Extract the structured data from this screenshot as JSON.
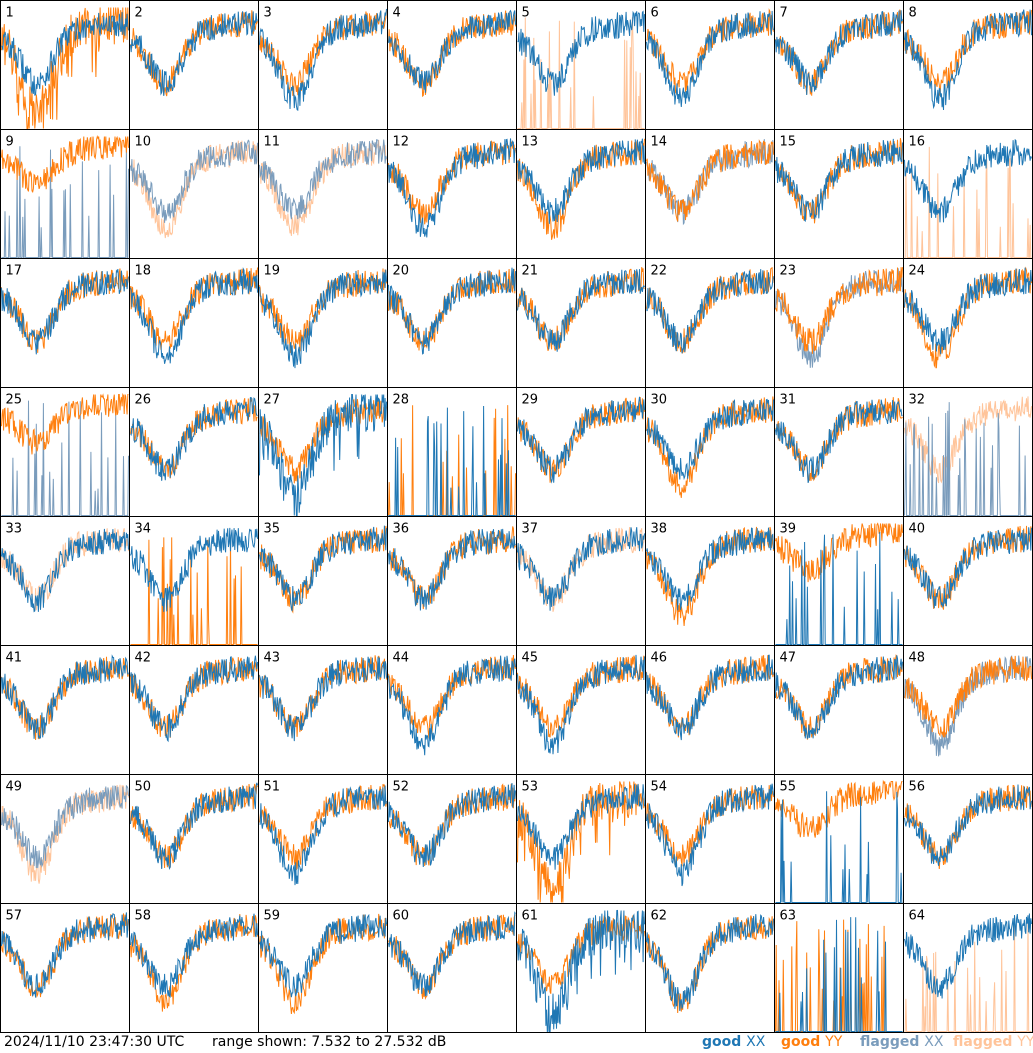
{
  "footer": {
    "timestamp": "2024/11/10 23:47:30 UTC",
    "range_text": "range shown: 7.532 to 27.532 dB"
  },
  "legend": [
    {
      "key": "good_xx",
      "prefix": "good ",
      "suffix": "XX",
      "color": "#1f77b4"
    },
    {
      "key": "good_yy",
      "prefix": "good ",
      "suffix": "YY",
      "color": "#ff7f0e"
    },
    {
      "key": "flagged_xx",
      "prefix": "flagged ",
      "suffix": "XX",
      "color": "#7a9cbc"
    },
    {
      "key": "flagged_yy",
      "prefix": "flagged ",
      "suffix": "YY",
      "color": "#ffc49a"
    }
  ],
  "chart_data": {
    "type": "line",
    "layout": "8x8 grid of small multiples, one panel per antenna",
    "ylim": [
      7.532,
      27.532
    ],
    "yunit": "dB",
    "series_keys": [
      "XX",
      "YY"
    ],
    "panels": [
      {
        "label": "1",
        "xx": "good",
        "yy": "good",
        "xx_shape": "dip",
        "yy_shape": "lowdip"
      },
      {
        "label": "2",
        "xx": "good",
        "yy": "good",
        "xx_shape": "dip",
        "yy_shape": "dip"
      },
      {
        "label": "3",
        "xx": "good",
        "yy": "good",
        "xx_shape": "deepdip",
        "yy_shape": "dip"
      },
      {
        "label": "4",
        "xx": "good",
        "yy": "good",
        "xx_shape": "dip",
        "yy_shape": "dip"
      },
      {
        "label": "5",
        "xx": "good",
        "yy": "flagged",
        "xx_shape": "dip",
        "yy_shape": "spikes"
      },
      {
        "label": "6",
        "xx": "good",
        "yy": "good",
        "xx_shape": "deepdip",
        "yy_shape": "dip"
      },
      {
        "label": "7",
        "xx": "good",
        "yy": "good",
        "xx_shape": "dip",
        "yy_shape": "dip"
      },
      {
        "label": "8",
        "xx": "good",
        "yy": "good",
        "xx_shape": "deepdip",
        "yy_shape": "dip"
      },
      {
        "label": "9",
        "xx": "flagged",
        "yy": "good",
        "xx_shape": "spikes",
        "yy_shape": "high"
      },
      {
        "label": "10",
        "xx": "flagged",
        "yy": "flagged",
        "xx_shape": "dip",
        "yy_shape": "deepdip"
      },
      {
        "label": "11",
        "xx": "flagged",
        "yy": "flagged",
        "xx_shape": "dip",
        "yy_shape": "deepdip"
      },
      {
        "label": "12",
        "xx": "good",
        "yy": "good",
        "xx_shape": "deepdip",
        "yy_shape": "dip"
      },
      {
        "label": "13",
        "xx": "good",
        "yy": "good",
        "xx_shape": "dip",
        "yy_shape": "deepdip"
      },
      {
        "label": "14",
        "xx": "flagged",
        "yy": "good",
        "xx_shape": "dip",
        "yy_shape": "dip"
      },
      {
        "label": "15",
        "xx": "good",
        "yy": "good",
        "xx_shape": "dip",
        "yy_shape": "dip"
      },
      {
        "label": "16",
        "xx": "good",
        "yy": "flagged",
        "xx_shape": "dip",
        "yy_shape": "spikes"
      },
      {
        "label": "17",
        "xx": "good",
        "yy": "good",
        "xx_shape": "dip",
        "yy_shape": "dip"
      },
      {
        "label": "18",
        "xx": "good",
        "yy": "good",
        "xx_shape": "deepdip",
        "yy_shape": "dip"
      },
      {
        "label": "19",
        "xx": "good",
        "yy": "good",
        "xx_shape": "deepdip",
        "yy_shape": "dip"
      },
      {
        "label": "20",
        "xx": "good",
        "yy": "good",
        "xx_shape": "dip",
        "yy_shape": "dip"
      },
      {
        "label": "21",
        "xx": "good",
        "yy": "good",
        "xx_shape": "dip",
        "yy_shape": "dip"
      },
      {
        "label": "22",
        "xx": "good",
        "yy": "good",
        "xx_shape": "dip",
        "yy_shape": "dip"
      },
      {
        "label": "23",
        "xx": "flagged",
        "yy": "good",
        "xx_shape": "deepdip",
        "yy_shape": "dip"
      },
      {
        "label": "24",
        "xx": "good",
        "yy": "good",
        "xx_shape": "dip",
        "yy_shape": "deepdip"
      },
      {
        "label": "25",
        "xx": "flagged",
        "yy": "good",
        "xx_shape": "spikes",
        "yy_shape": "high"
      },
      {
        "label": "26",
        "xx": "good",
        "yy": "good",
        "xx_shape": "dip",
        "yy_shape": "dip"
      },
      {
        "label": "27",
        "xx": "good",
        "yy": "good",
        "xx_shape": "lowdip",
        "yy_shape": "dip"
      },
      {
        "label": "28",
        "xx": "good",
        "yy": "good",
        "xx_shape": "spikes",
        "yy_shape": "spikes"
      },
      {
        "label": "29",
        "xx": "good",
        "yy": "good",
        "xx_shape": "dip",
        "yy_shape": "dip"
      },
      {
        "label": "30",
        "xx": "good",
        "yy": "good",
        "xx_shape": "dip",
        "yy_shape": "deepdip"
      },
      {
        "label": "31",
        "xx": "good",
        "yy": "good",
        "xx_shape": "dip",
        "yy_shape": "dip"
      },
      {
        "label": "32",
        "xx": "flagged",
        "yy": "flagged",
        "xx_shape": "spikes",
        "yy_shape": "dip"
      },
      {
        "label": "33",
        "xx": "good",
        "yy": "flagged",
        "xx_shape": "dip",
        "yy_shape": "dip"
      },
      {
        "label": "34",
        "xx": "good",
        "yy": "good",
        "xx_shape": "dip",
        "yy_shape": "spikes"
      },
      {
        "label": "35",
        "xx": "good",
        "yy": "good",
        "xx_shape": "dip",
        "yy_shape": "dip"
      },
      {
        "label": "36",
        "xx": "good",
        "yy": "good",
        "xx_shape": "dip",
        "yy_shape": "dip"
      },
      {
        "label": "37",
        "xx": "good",
        "yy": "flagged",
        "xx_shape": "dip",
        "yy_shape": "dip"
      },
      {
        "label": "38",
        "xx": "good",
        "yy": "good",
        "xx_shape": "dip",
        "yy_shape": "deepdip"
      },
      {
        "label": "39",
        "xx": "good",
        "yy": "good",
        "xx_shape": "spikes",
        "yy_shape": "high"
      },
      {
        "label": "40",
        "xx": "good",
        "yy": "good",
        "xx_shape": "dip",
        "yy_shape": "dip"
      },
      {
        "label": "41",
        "xx": "good",
        "yy": "good",
        "xx_shape": "dip",
        "yy_shape": "dip"
      },
      {
        "label": "42",
        "xx": "good",
        "yy": "good",
        "xx_shape": "dip",
        "yy_shape": "dip"
      },
      {
        "label": "43",
        "xx": "good",
        "yy": "good",
        "xx_shape": "dip",
        "yy_shape": "dip"
      },
      {
        "label": "44",
        "xx": "good",
        "yy": "good",
        "xx_shape": "deepdip",
        "yy_shape": "dip"
      },
      {
        "label": "45",
        "xx": "good",
        "yy": "good",
        "xx_shape": "deepdip",
        "yy_shape": "dip"
      },
      {
        "label": "46",
        "xx": "good",
        "yy": "good",
        "xx_shape": "dip",
        "yy_shape": "dip"
      },
      {
        "label": "47",
        "xx": "good",
        "yy": "good",
        "xx_shape": "dip",
        "yy_shape": "dip"
      },
      {
        "label": "48",
        "xx": "flagged",
        "yy": "good",
        "xx_shape": "deepdip",
        "yy_shape": "dip"
      },
      {
        "label": "49",
        "xx": "flagged",
        "yy": "flagged",
        "xx_shape": "dip",
        "yy_shape": "deepdip"
      },
      {
        "label": "50",
        "xx": "good",
        "yy": "good",
        "xx_shape": "dip",
        "yy_shape": "dip"
      },
      {
        "label": "51",
        "xx": "good",
        "yy": "good",
        "xx_shape": "deepdip",
        "yy_shape": "dip"
      },
      {
        "label": "52",
        "xx": "good",
        "yy": "good",
        "xx_shape": "dip",
        "yy_shape": "dip"
      },
      {
        "label": "53",
        "xx": "good",
        "yy": "good",
        "xx_shape": "dip",
        "yy_shape": "lowdip"
      },
      {
        "label": "54",
        "xx": "good",
        "yy": "good",
        "xx_shape": "deepdip",
        "yy_shape": "dip"
      },
      {
        "label": "55",
        "xx": "good",
        "yy": "good",
        "xx_shape": "spikes",
        "yy_shape": "high"
      },
      {
        "label": "56",
        "xx": "good",
        "yy": "good",
        "xx_shape": "dip",
        "yy_shape": "dip"
      },
      {
        "label": "57",
        "xx": "good",
        "yy": "good",
        "xx_shape": "dip",
        "yy_shape": "dip"
      },
      {
        "label": "58",
        "xx": "good",
        "yy": "good",
        "xx_shape": "dip",
        "yy_shape": "deepdip"
      },
      {
        "label": "59",
        "xx": "good",
        "yy": "good",
        "xx_shape": "dip",
        "yy_shape": "deepdip"
      },
      {
        "label": "60",
        "xx": "good",
        "yy": "good",
        "xx_shape": "dip",
        "yy_shape": "dip"
      },
      {
        "label": "61",
        "xx": "good",
        "yy": "good",
        "xx_shape": "lowdip",
        "yy_shape": "dip"
      },
      {
        "label": "62",
        "xx": "good",
        "yy": "good",
        "xx_shape": "deepdip",
        "yy_shape": "deepdip"
      },
      {
        "label": "63",
        "xx": "good",
        "yy": "good",
        "xx_shape": "spikes",
        "yy_shape": "spikes"
      },
      {
        "label": "64",
        "xx": "good",
        "yy": "flagged",
        "xx_shape": "dip",
        "yy_shape": "spikes"
      }
    ]
  }
}
